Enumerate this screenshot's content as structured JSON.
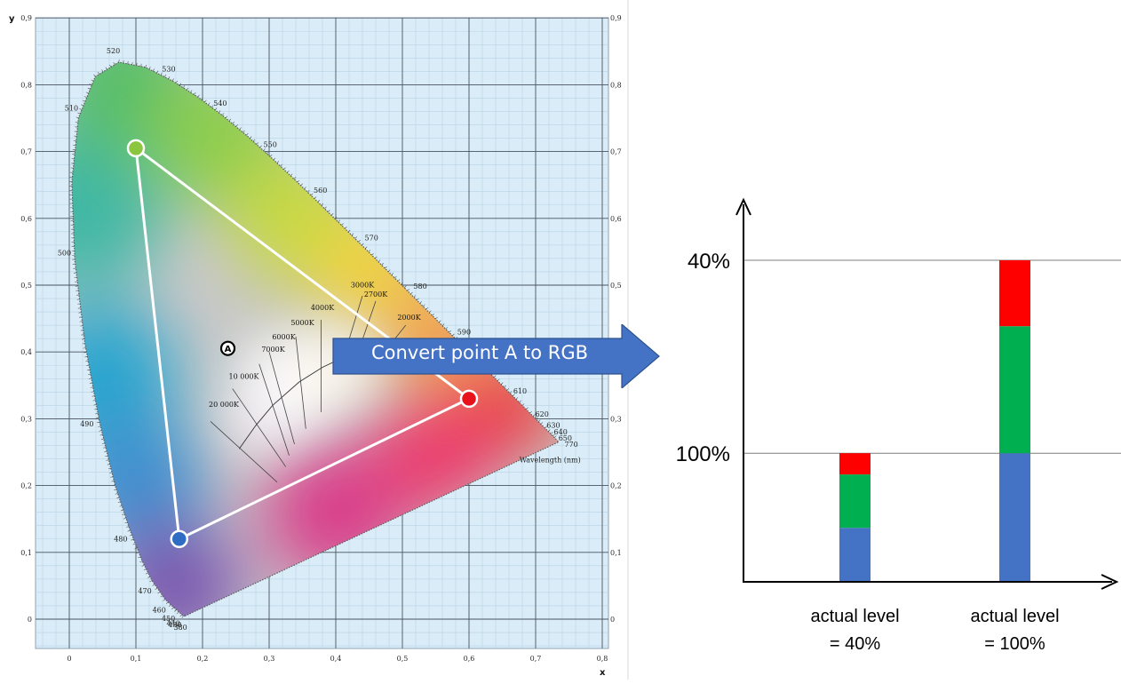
{
  "cie": {
    "y_axis_name": "y",
    "x_axis_name": "x",
    "x_ticks": [
      "0",
      "0,1",
      "0,2",
      "0,3",
      "0,4",
      "0,5",
      "0,6",
      "0,7",
      "0,8"
    ],
    "y_ticks": [
      "0",
      "0,1",
      "0,2",
      "0,3",
      "0,4",
      "0,5",
      "0,6",
      "0,7",
      "0,8",
      "0,9"
    ],
    "wavelength_labels": [
      {
        "text": "380",
        "x": 0.174,
        "y": 0.005
      },
      {
        "text": "430",
        "x": 0.166,
        "y": 0.009
      },
      {
        "text": "440",
        "x": 0.164,
        "y": 0.011
      },
      {
        "text": "450",
        "x": 0.157,
        "y": 0.018
      },
      {
        "text": "460",
        "x": 0.144,
        "y": 0.03
      },
      {
        "text": "470",
        "x": 0.124,
        "y": 0.058
      },
      {
        "text": "480",
        "x": 0.091,
        "y": 0.133
      },
      {
        "text": "490",
        "x": 0.045,
        "y": 0.295
      },
      {
        "text": "500",
        "x": 0.008,
        "y": 0.538
      },
      {
        "text": "510",
        "x": 0.014,
        "y": 0.75
      },
      {
        "text": "520",
        "x": 0.074,
        "y": 0.834
      },
      {
        "text": "530",
        "x": 0.155,
        "y": 0.806
      },
      {
        "text": "540",
        "x": 0.23,
        "y": 0.754
      },
      {
        "text": "550",
        "x": 0.302,
        "y": 0.692
      },
      {
        "text": "560",
        "x": 0.373,
        "y": 0.624
      },
      {
        "text": "570",
        "x": 0.444,
        "y": 0.555
      },
      {
        "text": "580",
        "x": 0.512,
        "y": 0.487
      },
      {
        "text": "590",
        "x": 0.575,
        "y": 0.424
      },
      {
        "text": "610",
        "x": 0.658,
        "y": 0.341
      },
      {
        "text": "620",
        "x": 0.691,
        "y": 0.308
      },
      {
        "text": "630",
        "x": 0.708,
        "y": 0.292
      },
      {
        "text": "640",
        "x": 0.719,
        "y": 0.283
      },
      {
        "text": "650",
        "x": 0.726,
        "y": 0.274
      },
      {
        "text": "770",
        "x": 0.735,
        "y": 0.265
      }
    ],
    "wavelength_axis_label": "Wavelength (nm)",
    "cct_labels": [
      {
        "text": "20 000K",
        "x": 0.232,
        "y": 0.318
      },
      {
        "text": "10 000K",
        "x": 0.262,
        "y": 0.36
      },
      {
        "text": "7000K",
        "x": 0.306,
        "y": 0.4
      },
      {
        "text": "6000K",
        "x": 0.322,
        "y": 0.419
      },
      {
        "text": "5000K",
        "x": 0.35,
        "y": 0.44
      },
      {
        "text": "4000K",
        "x": 0.38,
        "y": 0.463
      },
      {
        "text": "3000K",
        "x": 0.44,
        "y": 0.497
      },
      {
        "text": "2700K",
        "x": 0.46,
        "y": 0.483
      },
      {
        "text": "2000K",
        "x": 0.51,
        "y": 0.448
      }
    ],
    "point_a": {
      "label": "A",
      "x": 0.25,
      "y": 0.4
    },
    "gamut_triangle": {
      "red": {
        "x": 0.6,
        "y": 0.33
      },
      "green": {
        "x": 0.1,
        "y": 0.705
      },
      "blue": {
        "x": 0.165,
        "y": 0.12
      }
    }
  },
  "arrow": {
    "label": "Convert point A to RGB",
    "color": "#4472c4"
  },
  "bars": {
    "y_tick_labels": [
      "100%",
      "40%"
    ],
    "categories": [
      {
        "line1": "actual level",
        "line2": "= 40%"
      },
      {
        "line1": "actual level",
        "line2": "= 100%"
      }
    ],
    "stack_order": [
      "blue",
      "green",
      "red"
    ],
    "colors": {
      "blue": "#4472c4",
      "green": "#00b050",
      "red": "#ff0000"
    }
  },
  "chart_data": {
    "type": "bar",
    "stacked": true,
    "categories": [
      "actual level = 40%",
      "actual level = 100%"
    ],
    "series": [
      {
        "values": [
          16.8,
          40
        ]
      },
      {
        "values": [
          16.6,
          39.5
        ]
      },
      {
        "values": [
          6.6,
          20.5
        ]
      }
    ],
    "series_colors": [
      "#4472c4",
      "#00b050",
      "#ff0000"
    ],
    "ylim": [
      0,
      115
    ],
    "y_tick_values": [
      40,
      100
    ],
    "grid": "horizontal lines at 40% and 100%"
  }
}
